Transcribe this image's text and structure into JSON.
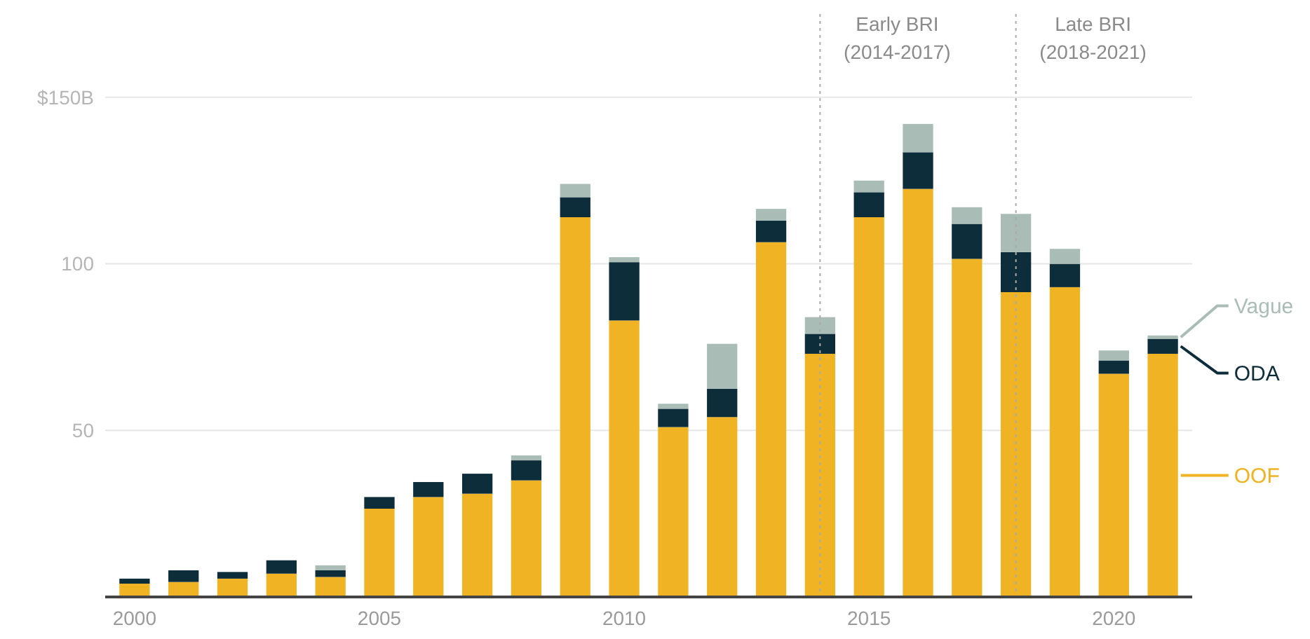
{
  "chart_data": {
    "type": "bar",
    "stacked": true,
    "x": [
      2000,
      2001,
      2002,
      2003,
      2004,
      2005,
      2006,
      2007,
      2008,
      2009,
      2010,
      2011,
      2012,
      2013,
      2014,
      2015,
      2016,
      2017,
      2018,
      2019,
      2020,
      2021
    ],
    "xlim": [
      1999.4,
      2021.6
    ],
    "xticks": [
      2000,
      2005,
      2010,
      2015,
      2020
    ],
    "ylim": [
      0,
      175
    ],
    "yticks": [
      50,
      100,
      {
        "value": 150,
        "label": "$150B"
      }
    ],
    "grid": "y",
    "legend": "right",
    "series": [
      {
        "name": "OOF",
        "color": "#f0b323",
        "values": [
          4,
          4.5,
          5.5,
          7,
          6,
          26.5,
          30,
          31,
          35,
          114,
          83,
          51,
          54,
          106.5,
          73,
          114,
          122.5,
          101.5,
          91.5,
          93,
          67,
          73
        ]
      },
      {
        "name": "ODA",
        "color": "#0d2d3a",
        "values": [
          1.5,
          3.5,
          2,
          4,
          2,
          3.5,
          4.5,
          6,
          6,
          6,
          17.5,
          5.5,
          8.5,
          6.5,
          6,
          7.5,
          11,
          10.5,
          12,
          7,
          4,
          4.5
        ]
      },
      {
        "name": "Vague",
        "color": "#a9bdb6",
        "values": [
          null,
          null,
          null,
          null,
          1.5,
          null,
          null,
          null,
          1.5,
          4,
          1.5,
          1.5,
          13.5,
          3.5,
          5,
          3.5,
          8.5,
          5,
          11.5,
          4.5,
          3,
          1
        ]
      }
    ],
    "ref_lines": [
      {
        "axis": "x",
        "value": 2014,
        "label": "Early BRI (2014-2017)",
        "line_style": "dotted",
        "color": "#aaaaaa"
      },
      {
        "axis": "x",
        "value": 2018,
        "label": "Late BRI (2018-2021)",
        "line_style": "dotted",
        "color": "#aaaaaa"
      }
    ]
  }
}
